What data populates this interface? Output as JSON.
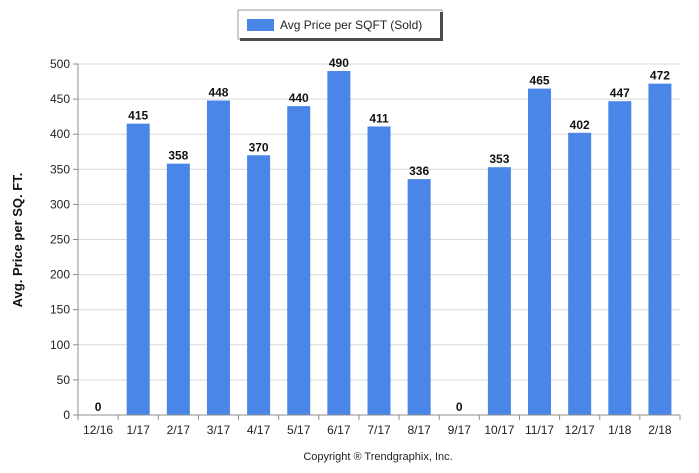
{
  "chart_data": {
    "type": "bar",
    "categories": [
      "12/16",
      "1/17",
      "2/17",
      "3/17",
      "4/17",
      "5/17",
      "6/17",
      "7/17",
      "8/17",
      "9/17",
      "10/17",
      "11/17",
      "12/17",
      "1/18",
      "2/18"
    ],
    "series": [
      {
        "name": "Avg Price per SQFT (Sold)",
        "values": [
          0,
          415,
          358,
          448,
          370,
          440,
          490,
          411,
          336,
          0,
          353,
          465,
          402,
          447,
          472
        ],
        "color": "#4a86e8"
      }
    ],
    "ylabel": "Avg. Price per SQ. FT.",
    "xlabel": "",
    "ylim": [
      0,
      500
    ],
    "yticks": [
      0,
      50,
      100,
      150,
      200,
      250,
      300,
      350,
      400,
      450,
      500
    ],
    "grid": true,
    "legend_position": "top-center",
    "data_labels": true
  },
  "footer": {
    "copyright": "Copyright ® Trendgraphix, Inc."
  }
}
